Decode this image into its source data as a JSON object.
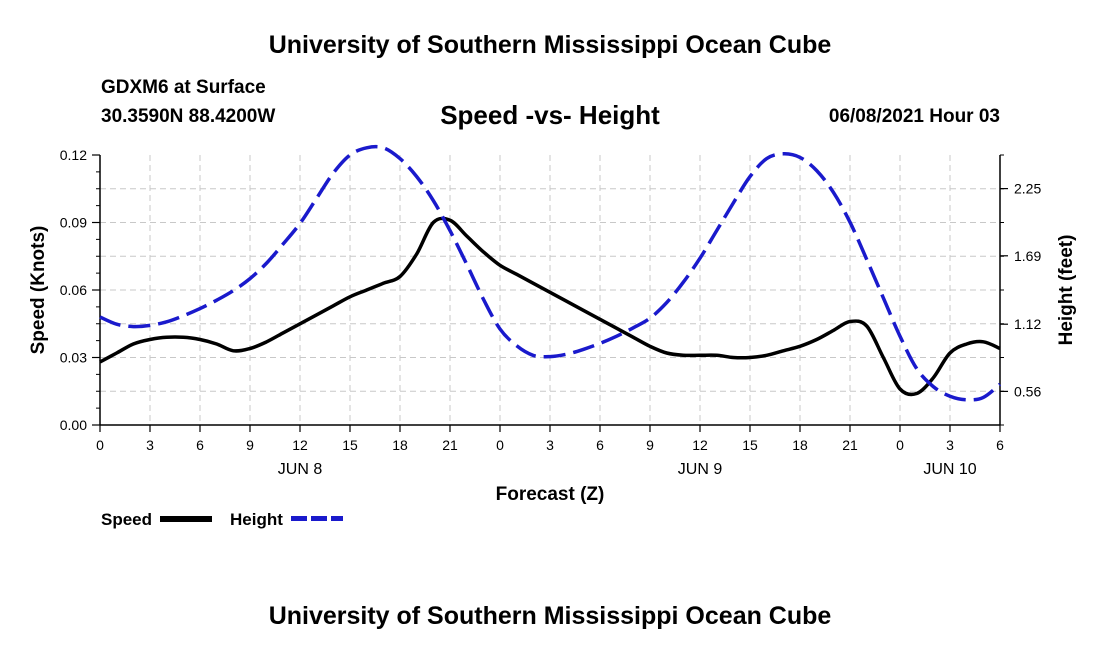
{
  "page": {
    "top_title": "University of Southern Mississippi Ocean Cube",
    "bottom_title": "University of Southern Mississippi Ocean Cube",
    "station": "GDXM6 at Surface",
    "coords": "30.3590N  88.4200W",
    "datetime": "06/08/2021 Hour 03"
  },
  "chart_data": {
    "type": "line",
    "title": "Speed -vs- Height",
    "xlabel": "Forecast (Z)",
    "ylabel": "Speed (Knots)",
    "y2label": "Height (feet)",
    "x_hours_range": [
      0,
      54
    ],
    "ylim": [
      0,
      0.12
    ],
    "y2lim": [
      0.28,
      2.53
    ],
    "y_ticks": [
      "0.00",
      "0.03",
      "0.06",
      "0.09",
      "0.12"
    ],
    "y_tick_values": [
      0,
      0.03,
      0.06,
      0.09,
      0.12
    ],
    "y2_ticks": [
      "0.56",
      "1.12",
      "1.69",
      "2.25"
    ],
    "y2_tick_values": [
      0.56,
      1.12,
      1.69,
      2.25
    ],
    "x_ticks": [
      "0",
      "3",
      "6",
      "9",
      "12",
      "15",
      "18",
      "21",
      "0",
      "3",
      "6",
      "9",
      "12",
      "15",
      "18",
      "21",
      "0",
      "3",
      "6"
    ],
    "x_tick_hours": [
      0,
      3,
      6,
      9,
      12,
      15,
      18,
      21,
      24,
      27,
      30,
      33,
      36,
      39,
      42,
      45,
      48,
      51,
      54
    ],
    "day_labels": [
      {
        "label": "JUN 8",
        "hour": 12
      },
      {
        "label": "JUN 9",
        "hour": 36
      },
      {
        "label": "JUN 10",
        "hour": 51
      }
    ],
    "grid": true,
    "legend": "bottom-left",
    "series": [
      {
        "name": "Speed",
        "axis": "left",
        "color": "#000000",
        "dash": "solid",
        "x": [
          0,
          1,
          2,
          3,
          4,
          5,
          6,
          7,
          8,
          9,
          10,
          11,
          12,
          13,
          14,
          15,
          16,
          17,
          18,
          19,
          20,
          21,
          22,
          23,
          24,
          25,
          26,
          27,
          28,
          29,
          30,
          31,
          32,
          33,
          34,
          35,
          36,
          37,
          38,
          39,
          40,
          41,
          42,
          43,
          44,
          45,
          46,
          47,
          48,
          49,
          50,
          51,
          52,
          53,
          54
        ],
        "values": [
          0.028,
          0.032,
          0.036,
          0.038,
          0.039,
          0.039,
          0.038,
          0.036,
          0.033,
          0.034,
          0.037,
          0.041,
          0.045,
          0.049,
          0.053,
          0.057,
          0.06,
          0.063,
          0.066,
          0.076,
          0.09,
          0.091,
          0.084,
          0.077,
          0.071,
          0.067,
          0.063,
          0.059,
          0.055,
          0.051,
          0.047,
          0.043,
          0.039,
          0.035,
          0.032,
          0.031,
          0.031,
          0.031,
          0.03,
          0.03,
          0.031,
          0.033,
          0.035,
          0.038,
          0.042,
          0.046,
          0.044,
          0.03,
          0.016,
          0.014,
          0.021,
          0.032,
          0.036,
          0.037,
          0.034
        ]
      },
      {
        "name": "Height",
        "axis": "right",
        "color": "#1a1acc",
        "dash": "dashed",
        "x": [
          0,
          1,
          2,
          3,
          4,
          5,
          6,
          7,
          8,
          9,
          10,
          11,
          12,
          13,
          14,
          15,
          16,
          17,
          18,
          19,
          20,
          21,
          22,
          23,
          24,
          25,
          26,
          27,
          28,
          29,
          30,
          31,
          32,
          33,
          34,
          35,
          36,
          37,
          38,
          39,
          40,
          41,
          42,
          43,
          44,
          45,
          46,
          47,
          48,
          49,
          50,
          51,
          52,
          53,
          54
        ],
        "values": [
          1.18,
          1.12,
          1.1,
          1.11,
          1.14,
          1.19,
          1.25,
          1.32,
          1.4,
          1.5,
          1.63,
          1.79,
          1.96,
          2.17,
          2.38,
          2.53,
          2.59,
          2.59,
          2.5,
          2.35,
          2.15,
          1.9,
          1.62,
          1.33,
          1.08,
          0.94,
          0.86,
          0.85,
          0.87,
          0.91,
          0.96,
          1.02,
          1.09,
          1.17,
          1.3,
          1.47,
          1.67,
          1.9,
          2.13,
          2.35,
          2.5,
          2.54,
          2.51,
          2.4,
          2.22,
          1.97,
          1.66,
          1.34,
          1.02,
          0.75,
          0.6,
          0.52,
          0.49,
          0.51,
          0.62
        ]
      }
    ]
  }
}
